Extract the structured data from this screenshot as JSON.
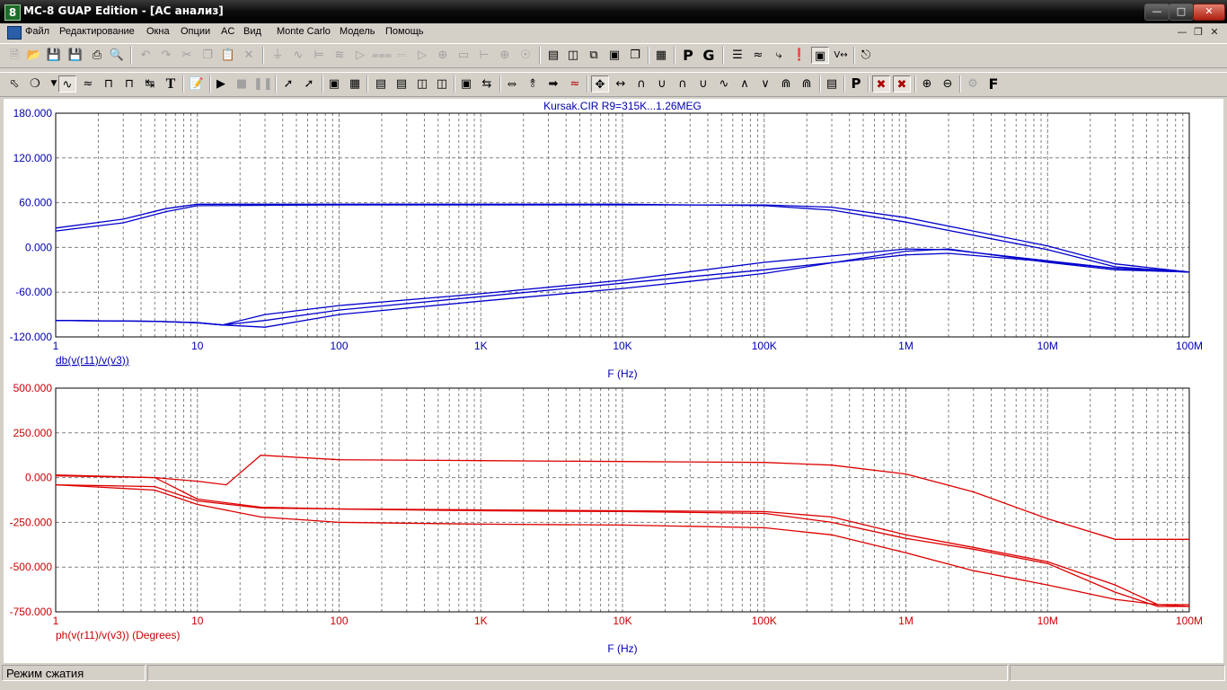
{
  "window": {
    "title": "MC-8 GUAP Edition - [AC анализ]",
    "app_icon": "8",
    "controls": [
      "minimize-icon",
      "maximize-icon",
      "close-icon"
    ]
  },
  "menu": {
    "items": [
      "Файл",
      "Редактирование",
      "Окна",
      "Опции",
      "AC",
      "Вид",
      "Monte Carlo",
      "Модель",
      "Помощь"
    ]
  },
  "toolbar1": {
    "icons": [
      "new-file-icon",
      "open-file-icon",
      "save-icon",
      "save-all-icon",
      "print-icon",
      "print-preview-icon",
      "undo-icon",
      "redo-icon",
      "cut-icon",
      "copy-icon",
      "paste-icon",
      "delete-icon",
      "ground-icon",
      "resistor-icon",
      "capacitor-icon",
      "inductor-icon",
      "diode-icon",
      "transistor-icon",
      "battery-icon",
      "opamp-icon",
      "current-source-icon",
      "connector-icon",
      "flag-icon",
      "voltage-source-icon",
      "tile-horizontal-icon",
      "tile-vertical-icon",
      "cascade-icon",
      "window-icon",
      "window-restore-icon",
      "calculator-icon",
      "p-key-icon",
      "g-key-icon",
      "waveform-list-icon",
      "wave-icon",
      "probe-icon",
      "exclamation-icon",
      "pressed-toggle-icon",
      "value-icon",
      "preview-icon"
    ],
    "p_label": "P",
    "g_label": "G"
  },
  "toolbar2": {
    "icons": [
      "select-arrow-icon",
      "component-icon",
      "scale-icon",
      "cursor-wave-icon",
      "mode-icon",
      "bracket-icon",
      "swap-icon",
      "text-icon",
      "properties-icon",
      "run-icon",
      "stop-icon",
      "pause-icon",
      "line-icon",
      "diagonal-icon",
      "box-icon",
      "grid-icon",
      "table-icon",
      "bars-icon",
      "frame-icon",
      "split-icon",
      "minus-icon",
      "tune-icon",
      "peak-icon",
      "slope-icon",
      "arrow-right-icon",
      "cursor-cross-icon",
      "cursor-left-right-icon",
      "peak-up-icon",
      "valley-icon",
      "high-icon",
      "low-icon",
      "inflection-icon",
      "global-high-icon",
      "global-low-icon",
      "multi-peak-icon",
      "multi-valley-icon",
      "data-table-icon",
      "point-icon",
      "x-cursor-icon",
      "y-cursor-icon",
      "zoom-in-icon",
      "zoom-out-icon",
      "settings-gear-icon",
      "font-icon"
    ],
    "text_label": "T",
    "p_label": "P",
    "f_label": "F"
  },
  "colors": {
    "magnitude_trace": "#0000cc",
    "phase_trace": "#dd0000",
    "grid": "#808080",
    "axis_text_top": "#0000b0",
    "axis_text_bottom": "#cc0000"
  },
  "plot": {
    "title": "Kursak.CIR R9=315K...1.26MEG",
    "x_tick_labels": [
      "1",
      "10",
      "100",
      "1K",
      "10K",
      "100K",
      "1M",
      "10M",
      "100M"
    ],
    "top": {
      "y_tick_labels": [
        "180.000",
        "120.000",
        "60.000",
        "0.000",
        "-60.000",
        "-120.000"
      ],
      "trace_label": "db(v(r11)/v(v3))",
      "xlabel": "F (Hz)"
    },
    "bottom": {
      "y_tick_labels": [
        "500.000",
        "250.000",
        "0.000",
        "-250.000",
        "-500.000",
        "-750.000"
      ],
      "trace_label": "ph(v(r11)/v(v3)) (Degrees)",
      "xlabel": "F (Hz)"
    }
  },
  "chart_data": [
    {
      "type": "line",
      "title": "Kursak.CIR R9=315K...1.26MEG",
      "xlabel": "F (Hz)",
      "ylabel": "db(v(r11)/v(v3))",
      "x_scale": "log",
      "xlim": [
        1,
        100000000
      ],
      "ylim": [
        -120,
        180
      ],
      "grid": true,
      "series": [
        {
          "x": [
            1,
            3,
            6,
            10,
            100,
            1000,
            10000,
            100000,
            300000,
            1000000,
            10000000,
            30000000,
            100000000
          ],
          "values": [
            22,
            33,
            48,
            56,
            57,
            57,
            57,
            57,
            54,
            40,
            2,
            -22,
            -33
          ]
        },
        {
          "x": [
            1,
            3,
            6,
            10,
            100,
            1000,
            10000,
            100000,
            300000,
            1000000,
            10000000,
            30000000,
            100000000
          ],
          "values": [
            26,
            38,
            52,
            58,
            58,
            58,
            58,
            56,
            50,
            34,
            -3,
            -26,
            -33
          ]
        },
        {
          "x": [
            1,
            5,
            10,
            15,
            30,
            100,
            1000,
            10000,
            100000,
            1000000,
            2000000,
            10000000,
            30000000,
            100000000
          ],
          "values": [
            -98,
            -99,
            -101,
            -104,
            -98,
            -84,
            -66,
            -48,
            -30,
            -10,
            -8,
            -19,
            -28,
            -33
          ]
        },
        {
          "x": [
            1,
            5,
            10,
            15,
            30,
            100,
            1000,
            10000,
            100000,
            1000000,
            2000000,
            10000000,
            30000000,
            100000000
          ],
          "values": [
            -98,
            -99,
            -101,
            -104,
            -107,
            -90,
            -72,
            -55,
            -35,
            -5,
            -2,
            -20,
            -30,
            -33
          ]
        },
        {
          "x": [
            1,
            5,
            10,
            15,
            30,
            100,
            1000,
            10000,
            100000,
            1000000,
            2000000,
            10000000,
            30000000,
            100000000
          ],
          "values": [
            -98,
            -99,
            -101,
            -104,
            -90,
            -78,
            -62,
            -44,
            -20,
            -2,
            -3,
            -18,
            -28,
            -33
          ]
        }
      ]
    },
    {
      "type": "line",
      "xlabel": "F (Hz)",
      "ylabel": "ph(v(r11)/v(v3)) (Degrees)",
      "x_scale": "log",
      "xlim": [
        1,
        100000000
      ],
      "ylim": [
        -750,
        500
      ],
      "grid": true,
      "series": [
        {
          "x": [
            1,
            5,
            10,
            16,
            28,
            100,
            1000,
            10000,
            100000,
            300000,
            1000000,
            3000000,
            10000000,
            30000000,
            100000000
          ],
          "values": [
            15,
            0,
            -20,
            -40,
            125,
            100,
            95,
            90,
            85,
            70,
            20,
            -80,
            -230,
            -345,
            -345
          ]
        },
        {
          "x": [
            1,
            5,
            10,
            28,
            100,
            1000,
            10000,
            100000,
            300000,
            1000000,
            3000000,
            10000000,
            30000000,
            60000000,
            100000000
          ],
          "values": [
            -40,
            -50,
            -130,
            -170,
            -175,
            -180,
            -185,
            -190,
            -220,
            -320,
            -390,
            -470,
            -600,
            -710,
            -710
          ]
        },
        {
          "x": [
            1,
            5,
            10,
            28,
            100,
            1000,
            10000,
            100000,
            300000,
            1000000,
            3000000,
            10000000,
            30000000,
            60000000,
            100000000
          ],
          "values": [
            -40,
            -70,
            -150,
            -220,
            -250,
            -260,
            -265,
            -280,
            -320,
            -420,
            -520,
            -600,
            -680,
            -710,
            -720
          ]
        },
        {
          "x": [
            1,
            5,
            10,
            28,
            100,
            1000,
            10000,
            100000,
            300000,
            1000000,
            3000000,
            10000000,
            30000000,
            60000000,
            100000000
          ],
          "values": [
            10,
            0,
            -120,
            -165,
            -175,
            -185,
            -190,
            -200,
            -250,
            -340,
            -400,
            -480,
            -640,
            -720,
            -720
          ]
        }
      ]
    }
  ],
  "status": {
    "mode": "Режим сжатия"
  }
}
